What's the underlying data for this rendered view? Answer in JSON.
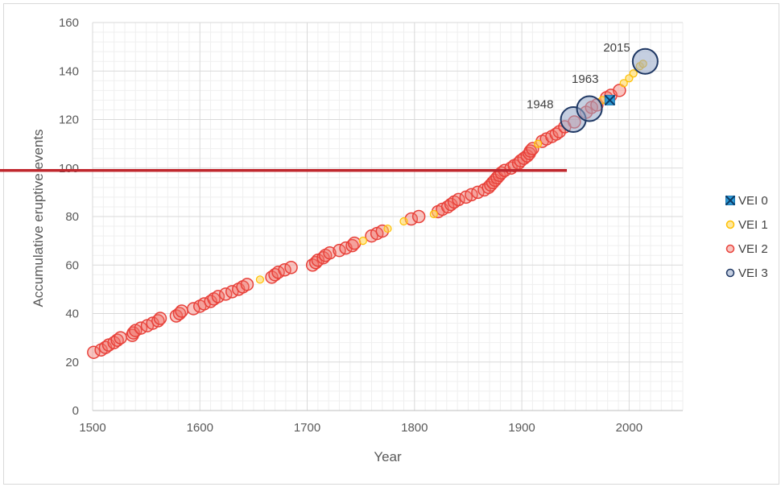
{
  "chart_data": {
    "type": "scatter",
    "title": "",
    "xlabel": "Year",
    "ylabel": "Accumulative eruptive events",
    "xlim": [
      1500,
      2050
    ],
    "ylim": [
      0,
      160
    ],
    "x_ticks": [
      "1500",
      "1600",
      "1700",
      "1800",
      "1900",
      "2000"
    ],
    "y_ticks": [
      "0",
      "20",
      "40",
      "60",
      "80",
      "100",
      "120",
      "140",
      "160"
    ],
    "grid": true,
    "legend_position": "right",
    "colors": {
      "VEI 0": "#2e9bd6",
      "VEI 1": "#ffc000",
      "VEI 2": "#e8413a",
      "VEI 3": "#1f3864",
      "ref_line": "#c0282e"
    },
    "reference_line": {
      "y": 99,
      "x_end": 1942
    },
    "series": [
      {
        "name": "VEI 0",
        "marker": "x-square",
        "points": [
          [
            1982,
            128
          ]
        ]
      },
      {
        "name": "VEI 1",
        "marker": "small-circle",
        "points": [
          [
            1656,
            54
          ],
          [
            1752,
            70
          ],
          [
            1775,
            75
          ],
          [
            1790,
            78
          ],
          [
            1818,
            81
          ],
          [
            1915,
            110
          ],
          [
            1975,
            128
          ],
          [
            1995,
            135
          ],
          [
            2000,
            137
          ],
          [
            2004,
            139
          ],
          [
            2010,
            142
          ],
          [
            2013,
            143
          ]
        ]
      },
      {
        "name": "VEI 2",
        "marker": "circle",
        "points": [
          [
            1501,
            24
          ],
          [
            1508,
            25
          ],
          [
            1512,
            26
          ],
          [
            1515,
            27
          ],
          [
            1520,
            28
          ],
          [
            1523,
            29
          ],
          [
            1526,
            30
          ],
          [
            1537,
            31
          ],
          [
            1538,
            32
          ],
          [
            1540,
            33
          ],
          [
            1545,
            34
          ],
          [
            1551,
            35
          ],
          [
            1556,
            36
          ],
          [
            1561,
            37
          ],
          [
            1563,
            38
          ],
          [
            1578,
            39
          ],
          [
            1581,
            40
          ],
          [
            1583,
            41
          ],
          [
            1594,
            42
          ],
          [
            1600,
            43
          ],
          [
            1604,
            44
          ],
          [
            1610,
            45
          ],
          [
            1613,
            46
          ],
          [
            1617,
            47
          ],
          [
            1624,
            48
          ],
          [
            1630,
            49
          ],
          [
            1636,
            50
          ],
          [
            1640,
            51
          ],
          [
            1644,
            52
          ],
          [
            1667,
            55
          ],
          [
            1670,
            56
          ],
          [
            1673,
            57
          ],
          [
            1679,
            58
          ],
          [
            1685,
            59
          ],
          [
            1705,
            60
          ],
          [
            1708,
            61
          ],
          [
            1710,
            62
          ],
          [
            1715,
            63
          ],
          [
            1717,
            64
          ],
          [
            1721,
            65
          ],
          [
            1730,
            66
          ],
          [
            1736,
            67
          ],
          [
            1742,
            68
          ],
          [
            1744,
            69
          ],
          [
            1760,
            72
          ],
          [
            1765,
            73
          ],
          [
            1770,
            74
          ],
          [
            1797,
            79
          ],
          [
            1804,
            80
          ],
          [
            1822,
            82
          ],
          [
            1826,
            83
          ],
          [
            1831,
            84
          ],
          [
            1834,
            85
          ],
          [
            1837,
            86
          ],
          [
            1841,
            87
          ],
          [
            1848,
            88
          ],
          [
            1853,
            89
          ],
          [
            1859,
            90
          ],
          [
            1865,
            91
          ],
          [
            1869,
            92
          ],
          [
            1871,
            93
          ],
          [
            1873,
            94
          ],
          [
            1875,
            95
          ],
          [
            1877,
            96
          ],
          [
            1879,
            97
          ],
          [
            1881,
            98
          ],
          [
            1884,
            99
          ],
          [
            1890,
            100
          ],
          [
            1893,
            101
          ],
          [
            1897,
            102
          ],
          [
            1899,
            103
          ],
          [
            1902,
            104
          ],
          [
            1905,
            105
          ],
          [
            1907,
            106
          ],
          [
            1908,
            107
          ],
          [
            1910,
            108
          ],
          [
            1919,
            111
          ],
          [
            1923,
            112
          ],
          [
            1928,
            113
          ],
          [
            1932,
            114
          ],
          [
            1935,
            115
          ],
          [
            1940,
            117
          ],
          [
            1949,
            119
          ],
          [
            1960,
            123
          ],
          [
            1965,
            125
          ],
          [
            1970,
            126
          ],
          [
            1979,
            129
          ],
          [
            1983,
            130
          ],
          [
            1991,
            132
          ]
        ]
      },
      {
        "name": "VEI 3",
        "marker": "large-circle",
        "points": [
          [
            1948,
            120
          ],
          [
            1963,
            124.5
          ],
          [
            2015,
            144
          ]
        ]
      }
    ],
    "annotations": [
      {
        "text": "1948",
        "x": 1948,
        "y": 120
      },
      {
        "text": "1963",
        "x": 1963,
        "y": 124.5
      },
      {
        "text": "2015",
        "x": 2015,
        "y": 144
      }
    ]
  }
}
